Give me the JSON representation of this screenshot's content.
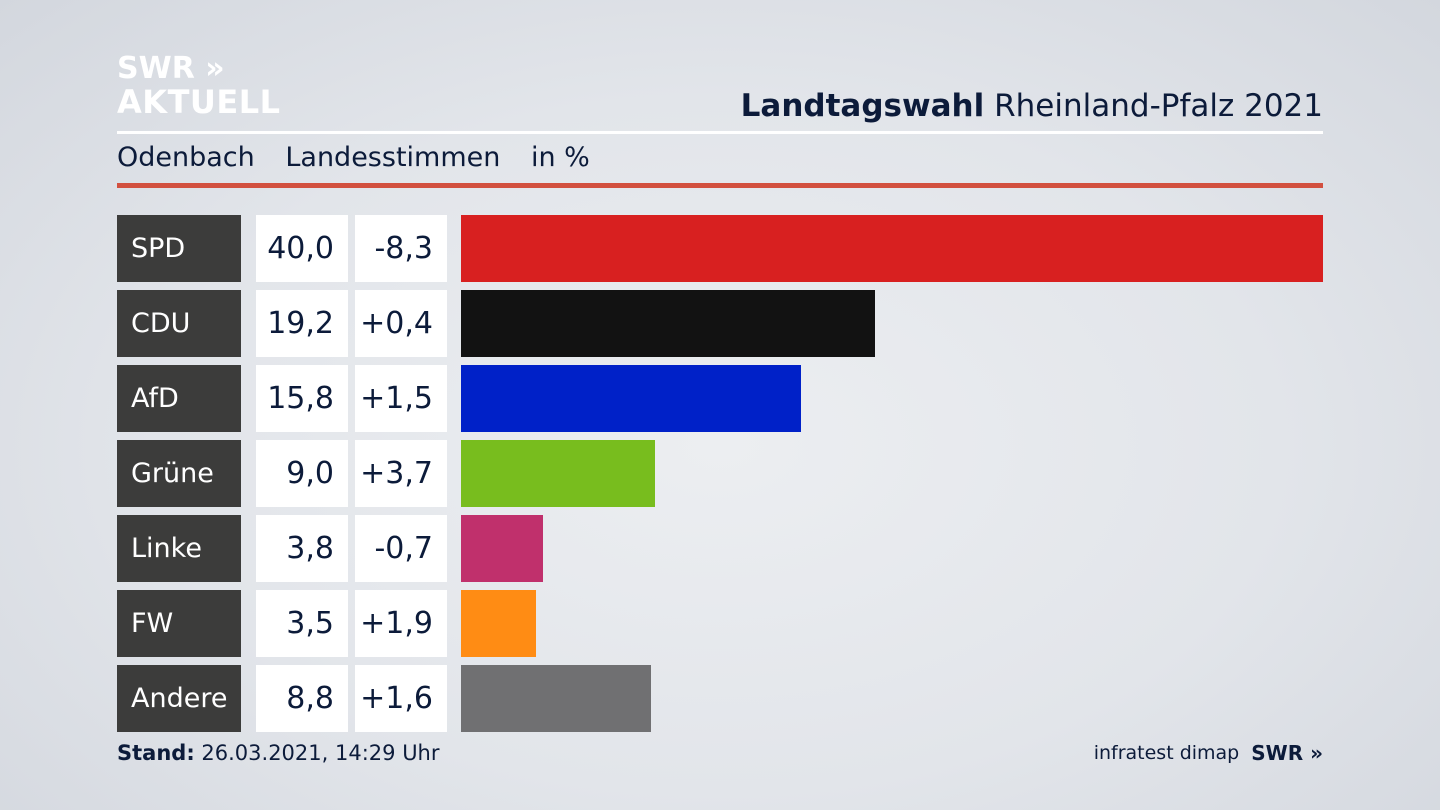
{
  "header": {
    "logo_line1": "SWR »",
    "logo_line2": "AKTUELL",
    "title_bold": "Landtagswahl",
    "title_rest": "Rheinland-Pfalz 2021",
    "subtitle_place": "Odenbach",
    "subtitle_type": "Landesstimmen",
    "subtitle_unit": "in %"
  },
  "chart_data": {
    "type": "bar",
    "categories": [
      "SPD",
      "CDU",
      "AfD",
      "Grüne",
      "Linke",
      "FW",
      "Andere"
    ],
    "values": [
      40.0,
      19.2,
      15.8,
      9.0,
      3.8,
      3.5,
      8.8
    ],
    "changes": [
      -8.3,
      0.4,
      1.5,
      3.7,
      -0.7,
      1.9,
      1.6
    ],
    "value_labels": [
      "40,0",
      "19,2",
      "15,8",
      "9,0",
      "3,8",
      "3,5",
      "8,8"
    ],
    "change_labels": [
      "-8,3",
      "+0,4",
      "+1,5",
      "+3,7",
      "-0,7",
      "+1,9",
      "+1,6"
    ],
    "colors": [
      "#d82020",
      "#121212",
      "#0021c8",
      "#78bd1e",
      "#c0306c",
      "#ff8c14",
      "#707072"
    ],
    "xlim": [
      0,
      40
    ],
    "orientation": "horizontal"
  },
  "footer": {
    "stand_label": "Stand:",
    "stand_value": "26.03.2021, 14:29 Uhr",
    "source": "infratest dimap",
    "brand": "SWR »"
  }
}
